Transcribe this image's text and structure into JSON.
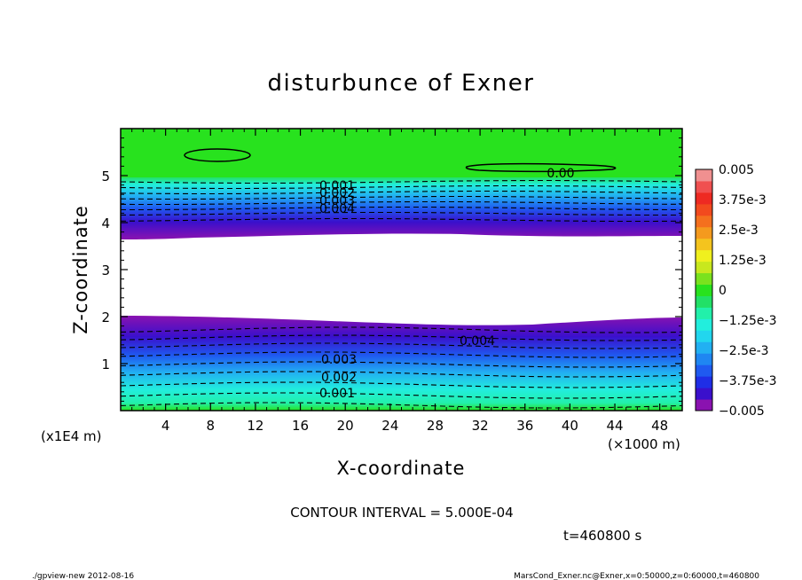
{
  "chart_data": {
    "type": "heatmap",
    "title": "disturbunce of Exner",
    "xlabel": "X-coordinate",
    "ylabel": "Z-coordinate",
    "x_unit": "(×1000 m)",
    "y_unit": "(x1E4 m)",
    "xlim": [
      0,
      50
    ],
    "ylim": [
      0,
      6
    ],
    "x_ticks": [
      4,
      8,
      12,
      16,
      20,
      24,
      28,
      32,
      36,
      40,
      44,
      48
    ],
    "y_ticks": [
      1,
      2,
      3,
      4,
      5
    ],
    "colorbar": {
      "levels": [
        -0.005,
        -0.0045,
        -0.004,
        -0.0035,
        -0.003,
        -0.0025,
        -0.002,
        -0.0015,
        -0.001,
        -0.0005,
        0,
        0.0005,
        0.001,
        0.0015,
        0.002,
        0.0025,
        0.003,
        0.0035,
        0.004,
        0.0045,
        0.005
      ],
      "tick_labels": [
        "0.005",
        "3.75e-3",
        "2.5e-3",
        "1.25e-3",
        "0",
        "−1.25e-3",
        "−2.5e-3",
        "−3.75e-3",
        "−0.005"
      ],
      "colors": [
        "#8a12b0",
        "#3a10cc",
        "#1f2ee6",
        "#1f5af0",
        "#1f86f2",
        "#22b0f2",
        "#22d6ee",
        "#22eedd",
        "#22f0aa",
        "#22e066",
        "#28e21e",
        "#7ae21e",
        "#c8e81e",
        "#f0f01e",
        "#f4c41e",
        "#f49a1e",
        "#f4701e",
        "#f24a1e",
        "#ee2a22",
        "#f05050",
        "#f09090"
      ]
    },
    "contour_labels": [
      {
        "text": "0.001",
        "x": 20,
        "z": 5.3
      },
      {
        "text": "0.002",
        "x": 20,
        "z": 5.15
      },
      {
        "text": "0.003",
        "x": 20,
        "z": 4.95
      },
      {
        "text": "0.004",
        "x": 20,
        "z": 4.8
      },
      {
        "text": "0.00",
        "x": 38,
        "z": 5.1
      },
      {
        "text": "0.004",
        "x": 35,
        "z": 1.55
      },
      {
        "text": "0.003",
        "x": 20,
        "z": 1.05
      },
      {
        "text": "0.002",
        "x": 20,
        "z": 0.65
      },
      {
        "text": "0.001",
        "x": 20,
        "z": 0.35
      }
    ],
    "contour_interval_text": "CONTOUR INTERVAL = 5.000E-04",
    "time_text": "t=460800 s"
  },
  "footer": {
    "left": "./gpview-new  2012-08-16",
    "right": "MarsCond_Exner.nc@Exner,x=0:50000,z=0:60000,t=460800"
  }
}
